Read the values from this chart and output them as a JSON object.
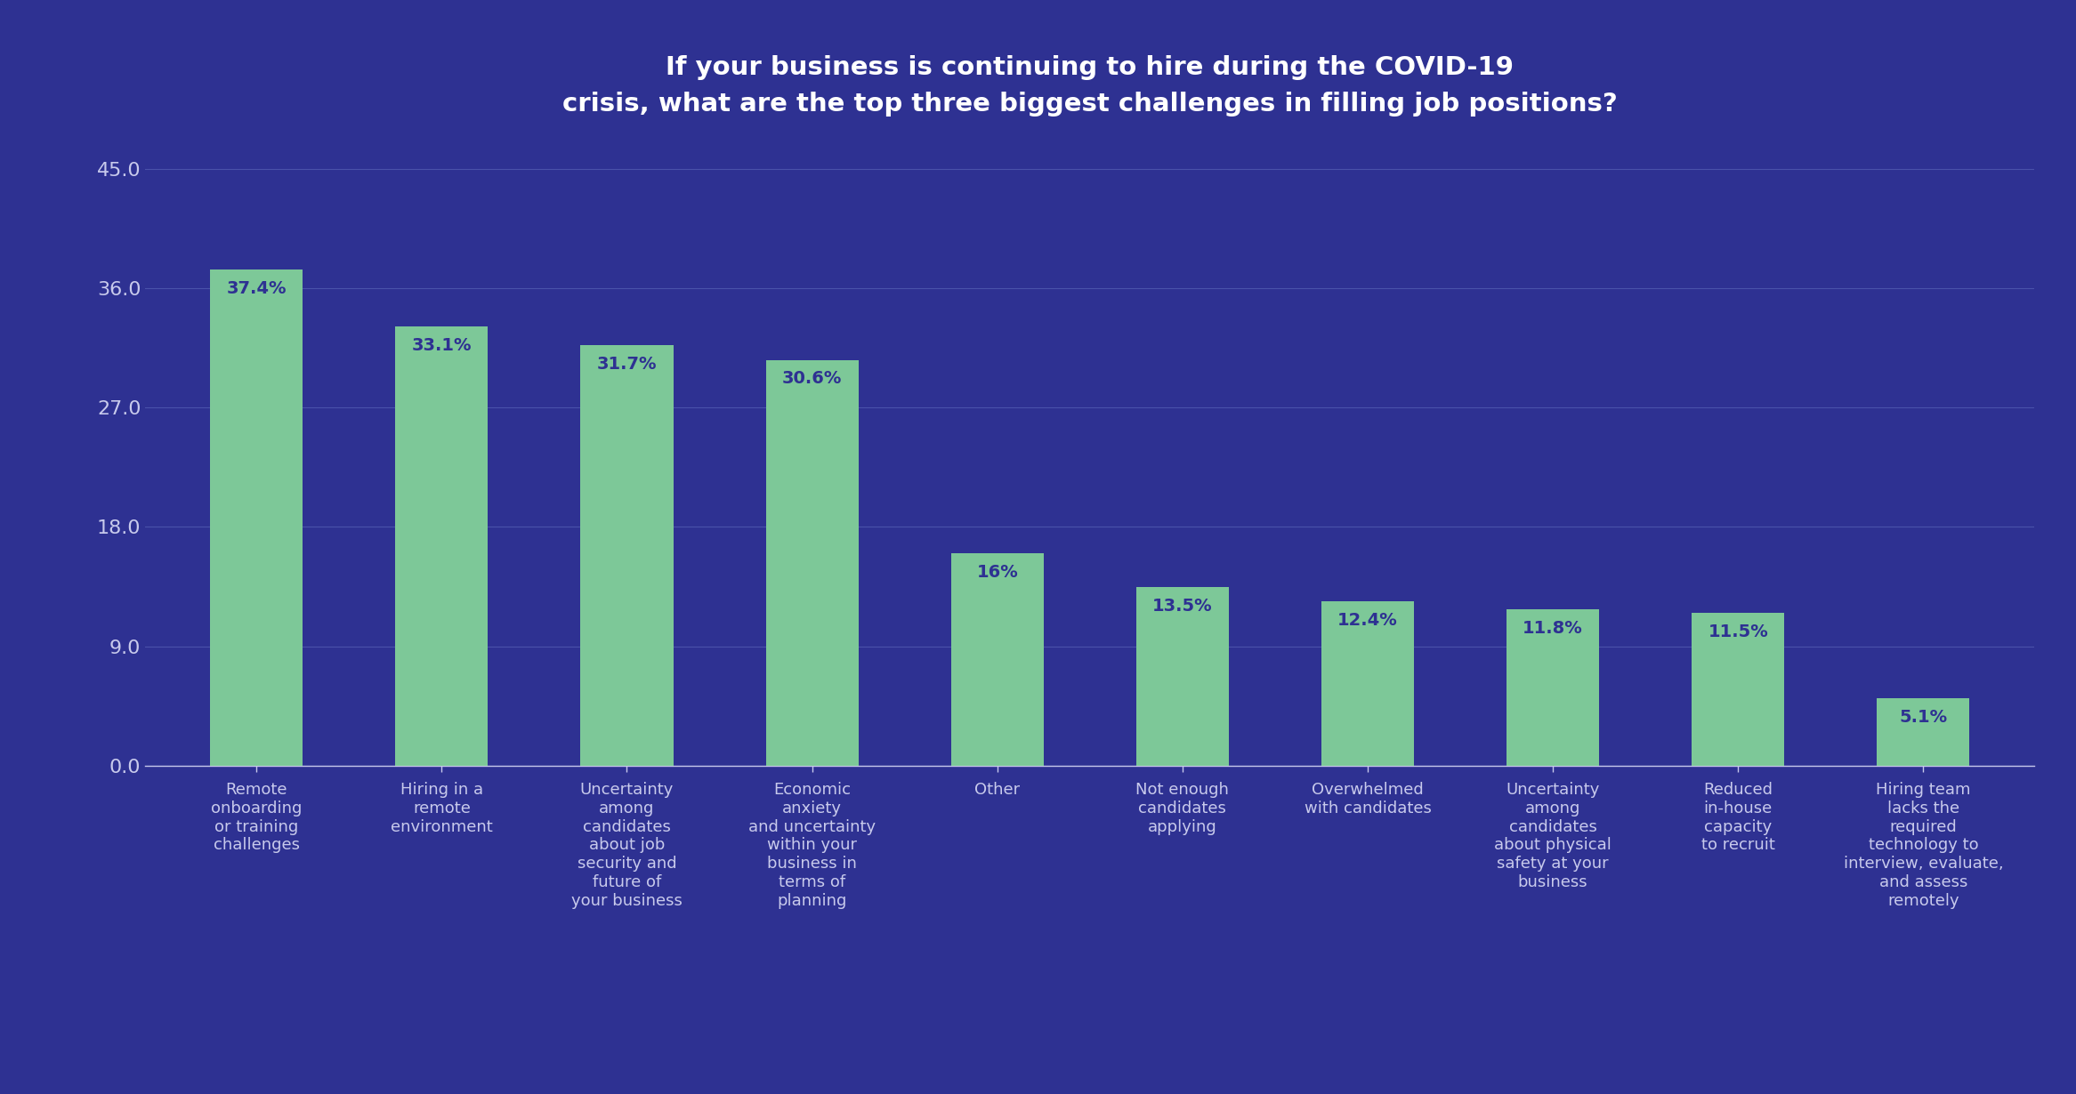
{
  "title_line1": "If your business is continuing to hire during the COVID-19",
  "title_line2": "crisis, what are the top three biggest challenges in filling job positions?",
  "categories": [
    "Remote\nonboarding\nor training\nchallenges",
    "Hiring in a\nremote\nenvironment",
    "Uncertainty\namong\ncandidates\nabout job\nsecurity and\nfuture of\nyour business",
    "Economic\nanxiety\nand uncertainty\nwithin your\nbusiness in\nterms of\nplanning",
    "Other",
    "Not enough\ncandidates\napplying",
    "Overwhelmed\nwith candidates",
    "Uncertainty\namong\ncandidates\nabout physical\nsafety at your\nbusiness",
    "Reduced\nin-house\ncapacity\nto recruit",
    "Hiring team\nlacks the\nrequired\ntechnology to\ninterview, evaluate,\nand assess\nremotely"
  ],
  "values": [
    37.4,
    33.1,
    31.7,
    30.6,
    16.0,
    13.5,
    12.4,
    11.8,
    11.5,
    5.1
  ],
  "labels": [
    "37.4%",
    "33.1%",
    "31.7%",
    "30.6%",
    "16%",
    "13.5%",
    "12.4%",
    "11.8%",
    "11.5%",
    "5.1%"
  ],
  "bar_color": "#7DC898",
  "background_color": "#2E3192",
  "text_color": "#FFFFFF",
  "label_color": "#2E3192",
  "axis_label_color": "#C8CAEC",
  "grid_color": "#4A52AA",
  "yticks": [
    0.0,
    9.0,
    18.0,
    27.0,
    36.0,
    45.0
  ],
  "ylim": [
    0,
    47
  ],
  "title_fontsize": 21,
  "tick_fontsize": 16,
  "bar_label_fontsize": 14,
  "xlabel_fontsize": 13,
  "bar_width": 0.5
}
